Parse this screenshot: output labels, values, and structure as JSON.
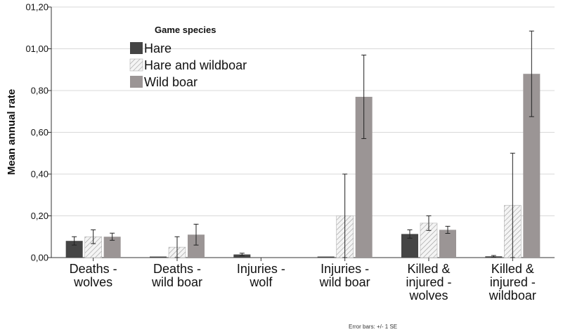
{
  "chart_data": {
    "type": "bar",
    "ylabel": "Mean annual rate",
    "ylim": [
      0,
      1.2
    ],
    "yticks": [
      "0,00",
      "0,20",
      "0,40",
      "0,60",
      "0,80",
      "01,00",
      "01,20"
    ],
    "categories": [
      [
        "Deaths -",
        "wolves"
      ],
      [
        "Deaths -",
        "wild boar"
      ],
      [
        "Injuries -",
        "wolf"
      ],
      [
        "Injuries -",
        "wild boar"
      ],
      [
        "Killed &",
        "injured -",
        "wolves"
      ],
      [
        "Killed &",
        "injured -",
        "wildboar"
      ]
    ],
    "legend_title": "Game species",
    "legend_position": "top-left",
    "series": [
      {
        "name": "Hare",
        "color": "#454545",
        "pattern": "solid",
        "values": [
          0.08,
          0.005,
          0.015,
          0.005,
          0.113,
          0.006
        ],
        "errors": [
          0.02,
          0.0,
          0.006,
          0.0,
          0.02,
          0.004
        ]
      },
      {
        "name": "Hare and wildboar",
        "color": "#f0f0f0",
        "pattern": "hatch",
        "values": [
          0.1,
          0.05,
          0.0,
          0.2,
          0.165,
          0.25
        ],
        "errors": [
          0.033,
          0.05,
          0.0,
          0.2,
          0.035,
          0.25
        ]
      },
      {
        "name": "Wild boar",
        "color": "#9b9595",
        "pattern": "solid",
        "values": [
          0.1,
          0.11,
          0.0,
          0.77,
          0.133,
          0.88
        ],
        "errors": [
          0.017,
          0.05,
          0.0,
          0.2,
          0.017,
          0.205
        ]
      }
    ],
    "footnote": "Error bars: +/- 1 SE"
  }
}
